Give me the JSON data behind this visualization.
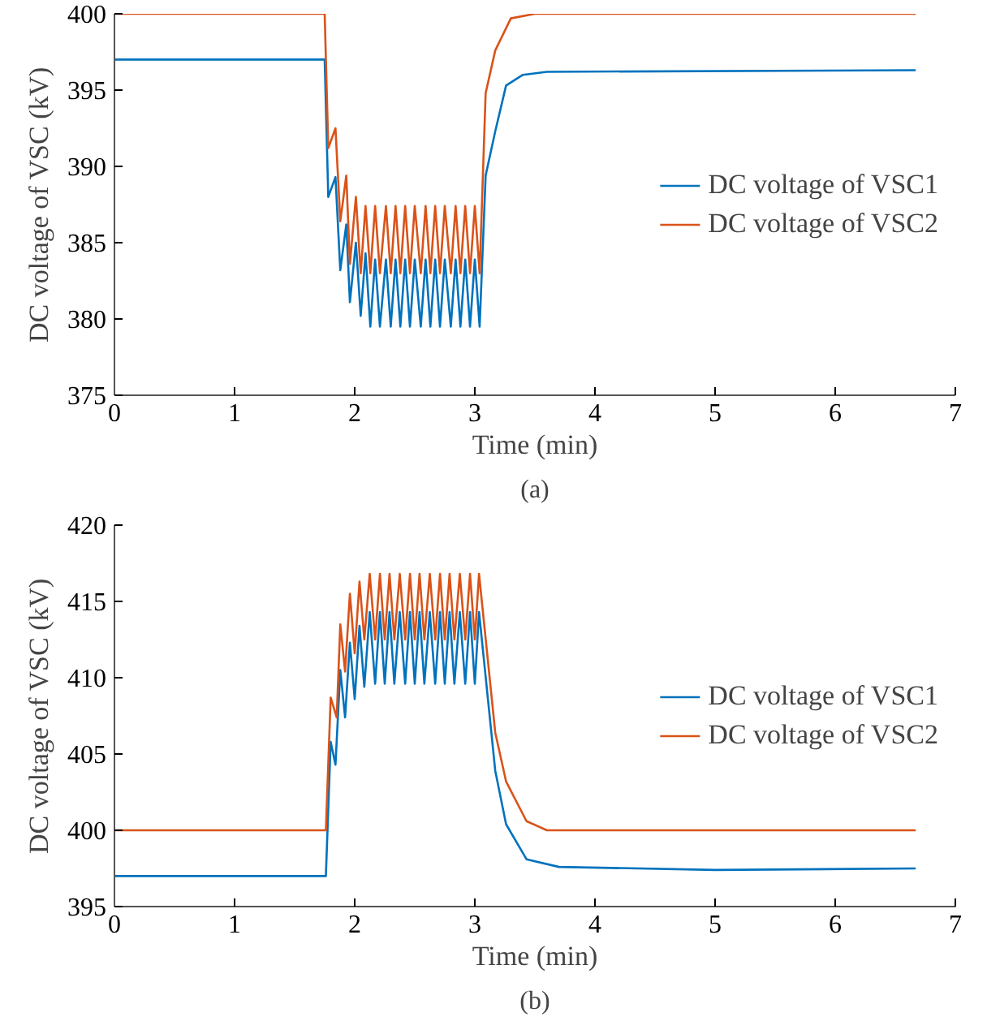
{
  "chart_data": [
    {
      "type": "line",
      "xlabel": "Time (min)",
      "ylabel": "DC voltage of VSC (kV)",
      "annotations": [
        "(a)"
      ],
      "xlim": [
        0,
        7
      ],
      "xticks": [
        0,
        1,
        2,
        3,
        4,
        5,
        6,
        7
      ],
      "ylim": [
        375,
        400
      ],
      "yticks": [
        375,
        380,
        385,
        390,
        395,
        400
      ],
      "grid": false,
      "legend": "right",
      "line_style": "solid",
      "series": [
        {
          "name": "DC voltage of VSC1",
          "color": "#0072bd",
          "x": [
            0,
            1.75,
            1.78,
            1.84,
            1.88,
            1.93,
            1.96,
            2.01,
            2.05,
            2.09,
            2.13,
            2.17,
            2.21,
            2.26,
            2.3,
            2.34,
            2.38,
            2.42,
            2.46,
            2.5,
            2.55,
            2.59,
            2.63,
            2.67,
            2.71,
            2.75,
            2.8,
            2.84,
            2.88,
            2.92,
            2.96,
            3.0,
            3.04,
            3.09,
            3.17,
            3.26,
            3.4,
            3.6,
            6.67
          ],
          "values": [
            397,
            397,
            388.0,
            389.3,
            383.2,
            386.2,
            381.1,
            385.0,
            380.2,
            384.3,
            379.5,
            383.9,
            379.5,
            383.9,
            379.5,
            383.9,
            379.5,
            383.9,
            379.5,
            383.9,
            379.5,
            383.9,
            379.5,
            383.9,
            379.5,
            383.9,
            379.5,
            383.9,
            379.5,
            383.9,
            379.5,
            383.9,
            379.5,
            389.4,
            392.3,
            395.3,
            396.0,
            396.2,
            396.3
          ]
        },
        {
          "name": "DC voltage of VSC2",
          "color": "#d95319",
          "x": [
            0,
            1.75,
            1.78,
            1.84,
            1.88,
            1.93,
            1.96,
            2.01,
            2.05,
            2.09,
            2.13,
            2.17,
            2.21,
            2.26,
            2.3,
            2.34,
            2.38,
            2.42,
            2.46,
            2.5,
            2.55,
            2.59,
            2.63,
            2.67,
            2.71,
            2.75,
            2.8,
            2.84,
            2.88,
            2.92,
            2.96,
            3.0,
            3.04,
            3.09,
            3.17,
            3.3,
            3.5,
            6.67
          ],
          "values": [
            400,
            400,
            391.2,
            392.5,
            386.4,
            389.4,
            383.6,
            388.0,
            383.0,
            387.4,
            383.0,
            387.4,
            383.0,
            387.4,
            383.0,
            387.4,
            383.0,
            387.4,
            383.0,
            387.4,
            383.0,
            387.4,
            383.0,
            387.4,
            383.0,
            387.4,
            383.0,
            387.4,
            383.0,
            387.4,
            383.0,
            387.4,
            383.0,
            394.8,
            397.6,
            399.7,
            400.0,
            400.0
          ]
        }
      ]
    },
    {
      "type": "line",
      "xlabel": "Time (min)",
      "ylabel": "DC voltage of VSC (kV)",
      "annotations": [
        "(b)"
      ],
      "xlim": [
        0,
        7
      ],
      "xticks": [
        0,
        1,
        2,
        3,
        4,
        5,
        6,
        7
      ],
      "ylim": [
        395,
        420
      ],
      "yticks": [
        395,
        400,
        405,
        410,
        415,
        420
      ],
      "grid": false,
      "legend": "right",
      "line_style": "solid",
      "series": [
        {
          "name": "DC voltage of VSC1",
          "color": "#0072bd",
          "x": [
            0,
            1.76,
            1.8,
            1.84,
            1.88,
            1.92,
            1.96,
            2.0,
            2.04,
            2.08,
            2.125,
            2.17,
            2.21,
            2.25,
            2.29,
            2.33,
            2.375,
            2.42,
            2.46,
            2.5,
            2.54,
            2.58,
            2.625,
            2.67,
            2.71,
            2.75,
            2.79,
            2.83,
            2.875,
            2.92,
            2.96,
            3.0,
            3.035,
            3.17,
            3.26,
            3.43,
            3.7,
            5.0,
            6.67
          ],
          "values": [
            397,
            397,
            405.8,
            404.3,
            410.5,
            407.4,
            412.3,
            408.6,
            413.4,
            409.4,
            414.3,
            409.6,
            414.3,
            409.6,
            414.3,
            409.6,
            414.3,
            409.6,
            414.3,
            409.6,
            414.3,
            409.6,
            414.3,
            409.6,
            414.3,
            409.6,
            414.3,
            409.6,
            414.3,
            409.6,
            414.3,
            409.6,
            414.3,
            403.9,
            400.4,
            398.1,
            397.6,
            397.4,
            397.5
          ]
        },
        {
          "name": "DC voltage of VSC2",
          "color": "#d95319",
          "x": [
            0,
            1.76,
            1.8,
            1.85,
            1.88,
            1.92,
            1.96,
            2.0,
            2.04,
            2.08,
            2.125,
            2.17,
            2.21,
            2.25,
            2.29,
            2.33,
            2.375,
            2.42,
            2.46,
            2.5,
            2.54,
            2.58,
            2.625,
            2.67,
            2.71,
            2.75,
            2.79,
            2.83,
            2.875,
            2.92,
            2.96,
            3.0,
            3.035,
            3.17,
            3.26,
            3.43,
            3.6,
            6.67
          ],
          "values": [
            400,
            400,
            408.7,
            407.4,
            413.5,
            410.4,
            415.5,
            411.6,
            416.3,
            412.5,
            416.8,
            412.5,
            416.8,
            412.5,
            416.8,
            412.5,
            416.8,
            412.5,
            416.8,
            412.5,
            416.8,
            412.5,
            416.8,
            412.5,
            416.8,
            412.5,
            416.8,
            412.5,
            416.8,
            412.5,
            416.8,
            412.5,
            416.8,
            406.4,
            403.2,
            400.6,
            400.0,
            400.0
          ]
        }
      ]
    }
  ]
}
